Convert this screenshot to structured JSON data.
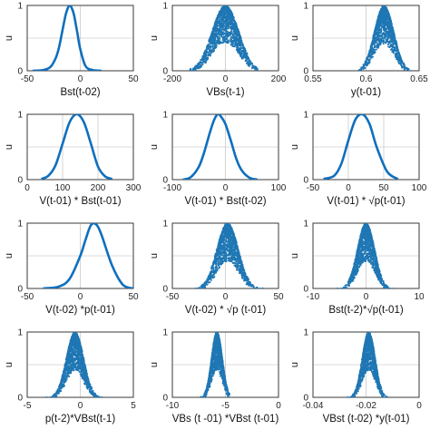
{
  "chart_data": [
    {
      "type": "line",
      "xlabel": "Bst(t-02)",
      "ylabel": "u",
      "xlim": [
        -50,
        50
      ],
      "ylim": [
        0,
        1
      ],
      "xticks": [
        "-50",
        "0",
        "50"
      ],
      "yticks": [
        "0",
        "1"
      ],
      "xgrid": [
        -50,
        0,
        50
      ],
      "ygrid": [
        0,
        0.5,
        1
      ],
      "series": [
        {
          "x": [
            -45,
            -35,
            -28,
            -23,
            -20,
            -17,
            -14,
            -12,
            -10,
            -8,
            -6,
            -3,
            0,
            5,
            12,
            20
          ],
          "y": [
            0,
            0.01,
            0.06,
            0.2,
            0.36,
            0.6,
            0.84,
            0.95,
            1,
            0.96,
            0.86,
            0.6,
            0.33,
            0.07,
            0.01,
            0
          ]
        }
      ]
    },
    {
      "type": "scatter",
      "xlabel": "VBs(t-1)",
      "ylabel": "u",
      "xlim": [
        -200,
        200
      ],
      "ylim": [
        0,
        1
      ],
      "xticks": [
        "-200",
        "0",
        "200"
      ],
      "yticks": [
        "0",
        "1"
      ],
      "xgrid": [
        -200,
        0,
        200
      ],
      "ygrid": [
        0,
        0.5,
        1
      ],
      "points": {
        "n": 1500,
        "center": 0,
        "spread": 50,
        "min_x": -135,
        "max_x": 125
      }
    },
    {
      "type": "scatter",
      "xlabel": "y(t-01)",
      "ylabel": "u",
      "xlim": [
        0.55,
        0.65
      ],
      "ylim": [
        0,
        1
      ],
      "xticks": [
        "0.55",
        "0.6",
        "0.65"
      ],
      "yticks": [
        "0",
        "1"
      ],
      "xgrid": [
        0.55,
        0.6,
        0.65
      ],
      "ygrid": [
        0,
        0.5,
        1
      ],
      "points": {
        "n": 1300,
        "center": 0.617,
        "spread": 0.009,
        "min_x": 0.592,
        "max_x": 0.642
      }
    },
    {
      "type": "line",
      "xlabel": "V(t-01) * Bst(t-01)",
      "ylabel": "u",
      "xlim": [
        0,
        300
      ],
      "ylim": [
        0,
        1
      ],
      "xticks": [
        "0",
        "100",
        "200",
        "300"
      ],
      "yticks": [
        "0",
        "1"
      ],
      "xgrid": [
        0,
        100,
        200,
        300
      ],
      "ygrid": [
        0,
        0.5,
        1
      ],
      "series": [
        {
          "x": [
            40,
            60,
            80,
            100,
            120,
            140,
            160,
            180,
            200,
            220,
            240
          ],
          "y": [
            0.01,
            0.06,
            0.22,
            0.55,
            0.88,
            1,
            0.88,
            0.55,
            0.2,
            0.05,
            0.01
          ]
        }
      ]
    },
    {
      "type": "line",
      "xlabel": "V(t-01) * Bst(t-02)",
      "ylabel": "u",
      "xlim": [
        -100,
        100
      ],
      "ylim": [
        0,
        1
      ],
      "xticks": [
        "-100",
        "0",
        "100"
      ],
      "yticks": [
        "0",
        "1"
      ],
      "xgrid": [
        -100,
        0,
        100
      ],
      "ygrid": [
        0,
        0.5,
        1
      ],
      "series": [
        {
          "x": [
            -80,
            -65,
            -50,
            -40,
            -30,
            -22,
            -15,
            -10,
            0,
            10,
            20,
            30,
            45,
            60
          ],
          "y": [
            0,
            0.04,
            0.2,
            0.42,
            0.7,
            0.9,
            1,
            0.98,
            0.85,
            0.6,
            0.33,
            0.15,
            0.03,
            0
          ]
        }
      ]
    },
    {
      "type": "line",
      "xlabel": "V(t-01) * √p(t-01)",
      "ylabel": "u",
      "xlim": [
        -50,
        100
      ],
      "ylim": [
        0,
        1
      ],
      "xticks": [
        "-50",
        "0",
        "50",
        "100"
      ],
      "yticks": [
        "0",
        "1"
      ],
      "xgrid": [
        -50,
        0,
        50,
        100
      ],
      "ygrid": [
        0,
        0.5,
        1
      ],
      "series": [
        {
          "x": [
            -35,
            -20,
            -10,
            0,
            10,
            20,
            30,
            40,
            55,
            70
          ],
          "y": [
            0.01,
            0.06,
            0.24,
            0.6,
            0.92,
            1,
            0.85,
            0.5,
            0.12,
            0.01
          ]
        }
      ]
    },
    {
      "type": "line",
      "xlabel": "V(t-02) *p(t-01)",
      "ylabel": "u",
      "xlim": [
        -50,
        50
      ],
      "ylim": [
        0,
        1
      ],
      "xticks": [
        "-50",
        "0",
        "50"
      ],
      "yticks": [
        "0",
        "1"
      ],
      "xgrid": [
        -50,
        0,
        50
      ],
      "ygrid": [
        0,
        0.5,
        1
      ],
      "series": [
        {
          "x": [
            -35,
            -20,
            -10,
            0,
            5,
            10,
            15,
            20,
            30,
            40,
            50
          ],
          "y": [
            0,
            0.03,
            0.15,
            0.5,
            0.75,
            0.97,
            0.98,
            0.82,
            0.35,
            0.06,
            0
          ]
        }
      ]
    },
    {
      "type": "scatter",
      "xlabel": "V(t-02) * √p  (t-01)",
      "ylabel": "u",
      "xlim": [
        -50,
        50
      ],
      "ylim": [
        0,
        1
      ],
      "xticks": [
        "-50",
        "0",
        "50"
      ],
      "yticks": [
        "0",
        "1"
      ],
      "xgrid": [
        -50,
        0,
        50
      ],
      "ygrid": [
        0,
        0.5,
        1
      ],
      "points": {
        "n": 1400,
        "center": 2,
        "spread": 10,
        "min_x": -33,
        "max_x": 38
      }
    },
    {
      "type": "scatter",
      "xlabel": "Bst(t-2)*√p(t-01)",
      "ylabel": "u",
      "xlim": [
        -10,
        10
      ],
      "ylim": [
        0,
        1
      ],
      "xticks": [
        "-10",
        "0",
        "10"
      ],
      "yticks": [
        "0",
        "1"
      ],
      "xgrid": [
        -10,
        0,
        10
      ],
      "ygrid": [
        0,
        0.5,
        1
      ],
      "points": {
        "n": 1400,
        "center": 0,
        "spread": 1.6,
        "min_x": -6,
        "max_x": 6.5
      }
    },
    {
      "type": "scatter",
      "xlabel": "p(t-2)*VBst(t-1)",
      "ylabel": "u",
      "xlim": [
        -5,
        5
      ],
      "ylim": [
        0,
        1
      ],
      "xticks": [
        "-5",
        "0",
        "5"
      ],
      "yticks": [
        "0",
        "1"
      ],
      "xgrid": [
        -5,
        0,
        5
      ],
      "ygrid": [
        0,
        0.5,
        1
      ],
      "points": {
        "n": 1500,
        "center": -0.5,
        "spread": 0.8,
        "min_x": -4,
        "max_x": 2.8
      }
    },
    {
      "type": "scatter",
      "xlabel": "VBs (t -01) *VBst (t-01)",
      "ylabel": "u",
      "xlim": [
        -10,
        0
      ],
      "ylim": [
        0,
        1
      ],
      "xticks": [
        "-10",
        "-5",
        "0"
      ],
      "yticks": [
        "0",
        "1"
      ],
      "xgrid": [
        -10,
        -5,
        0
      ],
      "ygrid": [
        0,
        0.5,
        1
      ],
      "points": {
        "n": 1300,
        "center": -5.8,
        "spread": 0.5,
        "min_x": -7.6,
        "max_x": -4.6
      }
    },
    {
      "type": "scatter",
      "xlabel": "VBst (t-02) *y(t-01)",
      "ylabel": "u",
      "xlim": [
        -0.04,
        0
      ],
      "ylim": [
        0,
        1
      ],
      "xticks": [
        "-0.04",
        "-0.02",
        "0"
      ],
      "yticks": [
        "0",
        "1"
      ],
      "xgrid": [
        -0.04,
        -0.02,
        0
      ],
      "ygrid": [
        0,
        0.5,
        1
      ],
      "points": {
        "n": 1400,
        "center": -0.019,
        "spread": 0.0024,
        "min_x": -0.028,
        "max_x": -0.011
      }
    }
  ],
  "colors": {
    "series": "#0f6fbd",
    "points": "#1f77b4",
    "frame": "#262626",
    "grid": "#b8b8b8"
  }
}
